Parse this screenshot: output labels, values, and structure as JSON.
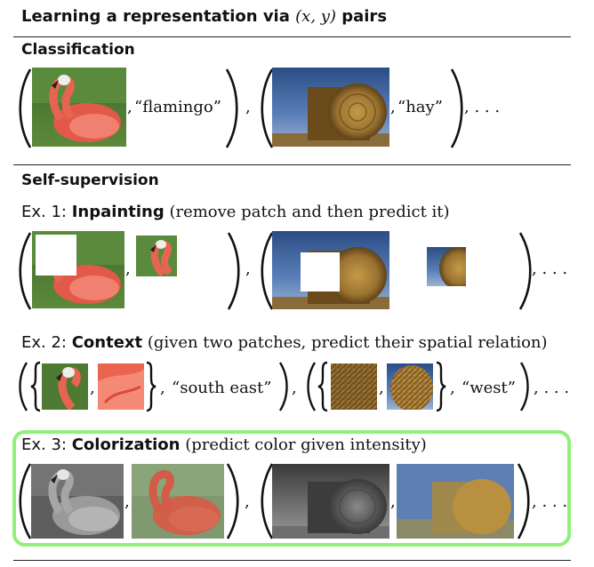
{
  "title": {
    "text": "Learning a representation via ",
    "math": "(x, y)",
    "tail": " pairs"
  },
  "classification": {
    "heading": "Classification",
    "labels": [
      "“flamingo”",
      "“hay”"
    ],
    "comma": ",",
    "ellipsis": ", . . ."
  },
  "self_supervision": {
    "heading": "Self-supervision",
    "ex1": {
      "label": "Ex. 1: ",
      "keyword": "Inpainting",
      "desc": " (remove patch and then predict it)"
    },
    "ex2": {
      "label": "Ex. 2: ",
      "keyword": "Context",
      "desc": " (given two patches, predict their spatial relation)",
      "labels": [
        "“south east”",
        "“west”"
      ]
    },
    "ex3": {
      "label": "Ex. 3: ",
      "keyword": "Colorization",
      "desc": " (predict color given intensity)"
    }
  },
  "colors": {
    "highlight_border": "#8ff07a",
    "rule": "#222222"
  }
}
